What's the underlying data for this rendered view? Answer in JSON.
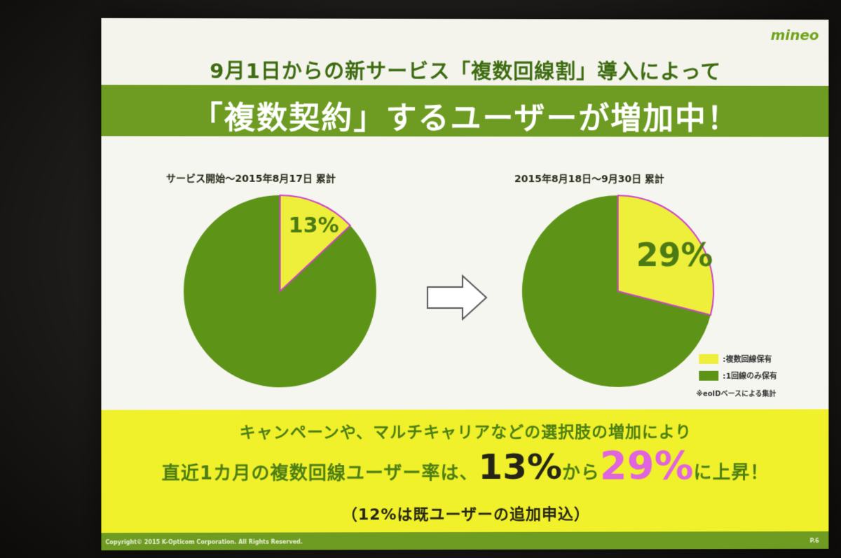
{
  "slide": {
    "logo": "mineo",
    "subtitle": "9月1日からの新サービス「複数回線割」導入によって",
    "title": "「複数契約」するユーザーが増加中！",
    "copyright": "Copyright© 2015 K-Opticom Corporation. All Rights Reserved.",
    "page_number": "P.6"
  },
  "chart_data": [
    {
      "type": "pie",
      "title": "サービス開始～2015年8月17日 累計",
      "labels": [
        "複数回線保有",
        "1回線のみ保有"
      ],
      "values": [
        13,
        87
      ],
      "data_labels": [
        "13%"
      ],
      "colors": [
        "#eeef3a",
        "#5d9418"
      ]
    },
    {
      "type": "pie",
      "title": "2015年8月18日～9月30日 累計",
      "labels": [
        "複数回線保有",
        "1回線のみ保有"
      ],
      "values": [
        29,
        71
      ],
      "data_labels": [
        "29%"
      ],
      "colors": [
        "#eeef3a",
        "#5d9418"
      ]
    }
  ],
  "legend": {
    "items": [
      {
        "label": ":複数回線保有",
        "color": "#eeef3a"
      },
      {
        "label": ":1回線のみ保有",
        "color": "#5d9418"
      }
    ],
    "note": "※eoIDベースによる集計"
  },
  "summary": {
    "line1": "キャンペーンや、マルチキャリアなどの選択肢の増加により",
    "line2_prefix": "直近1カ月の複数回線ユーザー率は、",
    "line2_from": "13%",
    "line2_mid": "から",
    "line2_to": "29%",
    "line2_suffix": "に上昇！",
    "line3": "（12%は既ユーザーの追加申込）"
  },
  "colors": {
    "green_band": "#6e9c22",
    "yellow_band": "#f0f12a",
    "pie_green": "#5d9418",
    "pie_yellow": "#eeef3a",
    "slice_outline": "#cc44cc",
    "highlight_pink": "#e063e0"
  },
  "icons": {
    "arrow": "right-arrow-icon"
  }
}
